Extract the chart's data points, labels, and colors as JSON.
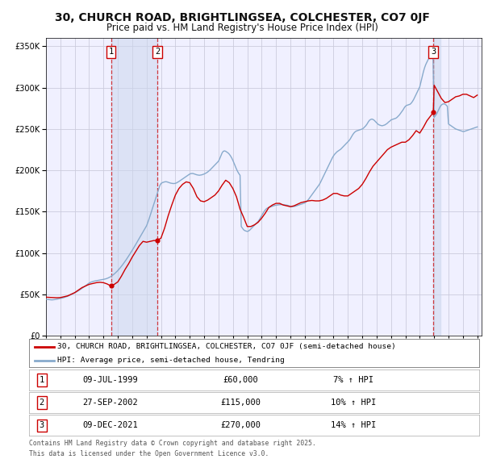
{
  "title": "30, CHURCH ROAD, BRIGHTLINGSEA, COLCHESTER, CO7 0JF",
  "subtitle": "Price paid vs. HM Land Registry's House Price Index (HPI)",
  "title_fontsize": 10,
  "subtitle_fontsize": 8.5,
  "line1_label": "30, CHURCH ROAD, BRIGHTLINGSEA, COLCHESTER, CO7 0JF (semi-detached house)",
  "line2_label": "HPI: Average price, semi-detached house, Tendring",
  "line1_color": "#cc0000",
  "line2_color": "#88aacc",
  "background_color": "#ffffff",
  "plot_bg_color": "#f0f0ff",
  "grid_color": "#ccccdd",
  "ylim": [
    0,
    360000
  ],
  "purchases": [
    {
      "label": "1",
      "date": "09-JUL-1999",
      "price": 60000,
      "pct": "7%",
      "year": 1999.52
    },
    {
      "label": "2",
      "date": "27-SEP-2002",
      "price": 115000,
      "pct": "10%",
      "year": 2002.74
    },
    {
      "label": "3",
      "date": "09-DEC-2021",
      "price": 270000,
      "pct": "14%",
      "year": 2021.94
    }
  ],
  "footnote1": "Contains HM Land Registry data © Crown copyright and database right 2025.",
  "footnote2": "This data is licensed under the Open Government Licence v3.0.",
  "hpi_years": [
    1995.0,
    1995.083,
    1995.167,
    1995.25,
    1995.333,
    1995.417,
    1995.5,
    1995.583,
    1995.667,
    1995.75,
    1995.833,
    1995.917,
    1996.0,
    1996.083,
    1996.167,
    1996.25,
    1996.333,
    1996.417,
    1996.5,
    1996.583,
    1996.667,
    1996.75,
    1996.833,
    1996.917,
    1997.0,
    1997.083,
    1997.167,
    1997.25,
    1997.333,
    1997.417,
    1997.5,
    1997.583,
    1997.667,
    1997.75,
    1997.833,
    1997.917,
    1998.0,
    1998.083,
    1998.167,
    1998.25,
    1998.333,
    1998.417,
    1998.5,
    1998.583,
    1998.667,
    1998.75,
    1998.833,
    1998.917,
    1999.0,
    1999.083,
    1999.167,
    1999.25,
    1999.333,
    1999.417,
    1999.5,
    1999.583,
    1999.667,
    1999.75,
    1999.833,
    1999.917,
    2000.0,
    2000.083,
    2000.167,
    2000.25,
    2000.333,
    2000.417,
    2000.5,
    2000.583,
    2000.667,
    2000.75,
    2000.833,
    2000.917,
    2001.0,
    2001.083,
    2001.167,
    2001.25,
    2001.333,
    2001.417,
    2001.5,
    2001.583,
    2001.667,
    2001.75,
    2001.833,
    2001.917,
    2002.0,
    2002.083,
    2002.167,
    2002.25,
    2002.333,
    2002.417,
    2002.5,
    2002.583,
    2002.667,
    2002.75,
    2002.833,
    2002.917,
    2003.0,
    2003.083,
    2003.167,
    2003.25,
    2003.333,
    2003.417,
    2003.5,
    2003.583,
    2003.667,
    2003.75,
    2003.833,
    2003.917,
    2004.0,
    2004.083,
    2004.167,
    2004.25,
    2004.333,
    2004.417,
    2004.5,
    2004.583,
    2004.667,
    2004.75,
    2004.833,
    2004.917,
    2005.0,
    2005.083,
    2005.167,
    2005.25,
    2005.333,
    2005.417,
    2005.5,
    2005.583,
    2005.667,
    2005.75,
    2005.833,
    2005.917,
    2006.0,
    2006.083,
    2006.167,
    2006.25,
    2006.333,
    2006.417,
    2006.5,
    2006.583,
    2006.667,
    2006.75,
    2006.833,
    2006.917,
    2007.0,
    2007.083,
    2007.167,
    2007.25,
    2007.333,
    2007.417,
    2007.5,
    2007.583,
    2007.667,
    2007.75,
    2007.833,
    2007.917,
    2008.0,
    2008.083,
    2008.167,
    2008.25,
    2008.333,
    2008.417,
    2008.5,
    2008.583,
    2008.667,
    2008.75,
    2008.833,
    2008.917,
    2009.0,
    2009.083,
    2009.167,
    2009.25,
    2009.333,
    2009.417,
    2009.5,
    2009.583,
    2009.667,
    2009.75,
    2009.833,
    2009.917,
    2010.0,
    2010.083,
    2010.167,
    2010.25,
    2010.333,
    2010.417,
    2010.5,
    2010.583,
    2010.667,
    2010.75,
    2010.833,
    2010.917,
    2011.0,
    2011.083,
    2011.167,
    2011.25,
    2011.333,
    2011.417,
    2011.5,
    2011.583,
    2011.667,
    2011.75,
    2011.833,
    2011.917,
    2012.0,
    2012.083,
    2012.167,
    2012.25,
    2012.333,
    2012.417,
    2012.5,
    2012.583,
    2012.667,
    2012.75,
    2012.833,
    2012.917,
    2013.0,
    2013.083,
    2013.167,
    2013.25,
    2013.333,
    2013.417,
    2013.5,
    2013.583,
    2013.667,
    2013.75,
    2013.833,
    2013.917,
    2014.0,
    2014.083,
    2014.167,
    2014.25,
    2014.333,
    2014.417,
    2014.5,
    2014.583,
    2014.667,
    2014.75,
    2014.833,
    2014.917,
    2015.0,
    2015.083,
    2015.167,
    2015.25,
    2015.333,
    2015.417,
    2015.5,
    2015.583,
    2015.667,
    2015.75,
    2015.833,
    2015.917,
    2016.0,
    2016.083,
    2016.167,
    2016.25,
    2016.333,
    2016.417,
    2016.5,
    2016.583,
    2016.667,
    2016.75,
    2016.833,
    2016.917,
    2017.0,
    2017.083,
    2017.167,
    2017.25,
    2017.333,
    2017.417,
    2017.5,
    2017.583,
    2017.667,
    2017.75,
    2017.833,
    2017.917,
    2018.0,
    2018.083,
    2018.167,
    2018.25,
    2018.333,
    2018.417,
    2018.5,
    2018.583,
    2018.667,
    2018.75,
    2018.833,
    2018.917,
    2019.0,
    2019.083,
    2019.167,
    2019.25,
    2019.333,
    2019.417,
    2019.5,
    2019.583,
    2019.667,
    2019.75,
    2019.833,
    2019.917,
    2020.0,
    2020.083,
    2020.167,
    2020.25,
    2020.333,
    2020.417,
    2020.5,
    2020.583,
    2020.667,
    2020.75,
    2020.833,
    2020.917,
    2021.0,
    2021.083,
    2021.167,
    2021.25,
    2021.333,
    2021.417,
    2021.5,
    2021.583,
    2021.667,
    2021.75,
    2021.833,
    2021.917,
    2022.0,
    2022.083,
    2022.167,
    2022.25,
    2022.333,
    2022.417,
    2022.5,
    2022.583,
    2022.667,
    2022.75,
    2022.833,
    2022.917,
    2023.0,
    2023.083,
    2023.167,
    2023.25,
    2023.333,
    2023.417,
    2023.5,
    2023.583,
    2023.667,
    2023.75,
    2023.833,
    2023.917,
    2024.0,
    2024.083,
    2024.167,
    2024.25,
    2024.333,
    2024.417,
    2024.5,
    2024.583,
    2024.667,
    2024.75,
    2024.833,
    2024.917,
    2025.0
  ],
  "hpi_values": [
    44000,
    43800,
    43600,
    43400,
    43300,
    43200,
    43300,
    43500,
    43700,
    44000,
    44300,
    44600,
    44900,
    45200,
    45600,
    46000,
    46500,
    47000,
    47600,
    48200,
    48900,
    49600,
    50300,
    51000,
    51700,
    52500,
    53300,
    54200,
    55100,
    56100,
    57100,
    58100,
    59200,
    60300,
    61400,
    62500,
    63600,
    64300,
    64900,
    65400,
    65800,
    66100,
    66400,
    66700,
    67000,
    67300,
    67500,
    67700,
    68000,
    68300,
    68700,
    69200,
    69800,
    70500,
    71300,
    72300,
    73400,
    74600,
    75900,
    77300,
    78800,
    80400,
    82100,
    83900,
    85800,
    87800,
    89800,
    91900,
    94100,
    96300,
    98600,
    100900,
    103200,
    105600,
    108000,
    110500,
    113000,
    115500,
    118000,
    120500,
    123000,
    125500,
    128000,
    130500,
    133000,
    137000,
    141000,
    145500,
    150000,
    154500,
    159000,
    163500,
    168000,
    172500,
    177000,
    181500,
    184000,
    185000,
    185500,
    186000,
    186200,
    186000,
    185500,
    185000,
    184500,
    184200,
    184000,
    184000,
    184200,
    184800,
    185600,
    186500,
    187500,
    188500,
    189500,
    190500,
    191500,
    192500,
    193500,
    194500,
    195500,
    196000,
    196200,
    196000,
    195500,
    195000,
    194500,
    194200,
    194000,
    194200,
    194500,
    195000,
    195500,
    196200,
    197000,
    198000,
    199200,
    200500,
    202000,
    203500,
    205000,
    206500,
    208000,
    209500,
    211000,
    214000,
    217500,
    221000,
    223000,
    223500,
    223000,
    222000,
    221000,
    219500,
    217500,
    215000,
    212000,
    208500,
    205000,
    201500,
    198500,
    196000,
    194000,
    132000,
    130000,
    128000,
    127000,
    126500,
    126000,
    126500,
    127500,
    129000,
    130500,
    132000,
    133500,
    135000,
    136500,
    138000,
    140000,
    142500,
    145000,
    147500,
    150000,
    152000,
    153500,
    154500,
    155000,
    155500,
    156000,
    156500,
    157000,
    157500,
    157800,
    158000,
    158200,
    158500,
    158500,
    158500,
    158500,
    158200,
    158000,
    157800,
    157500,
    157000,
    156500,
    156000,
    156000,
    156200,
    156500,
    157000,
    157500,
    158000,
    158500,
    159000,
    159500,
    160000,
    160500,
    161500,
    163000,
    164500,
    166500,
    168500,
    170500,
    172500,
    174500,
    176500,
    178500,
    180500,
    182500,
    185000,
    188000,
    191000,
    194000,
    197000,
    200000,
    203000,
    206000,
    209000,
    212000,
    215000,
    217500,
    219500,
    221000,
    222500,
    223500,
    224500,
    225500,
    227000,
    228500,
    230000,
    231500,
    233000,
    234500,
    236000,
    238000,
    240500,
    243000,
    245000,
    246500,
    247500,
    248000,
    248500,
    249000,
    249500,
    250000,
    251000,
    252500,
    254000,
    256000,
    258500,
    260500,
    261500,
    262000,
    261500,
    260500,
    259000,
    257500,
    256000,
    255000,
    254500,
    254000,
    254000,
    254500,
    255000,
    256000,
    257000,
    258500,
    259500,
    261000,
    261500,
    262000,
    262500,
    263000,
    264000,
    265500,
    267000,
    269000,
    271000,
    273000,
    275500,
    277500,
    278500,
    279000,
    279500,
    280000,
    281500,
    283500,
    286000,
    289000,
    292000,
    295000,
    298000,
    301000,
    307000,
    313000,
    319000,
    324000,
    328000,
    331000,
    334000,
    336000,
    337500,
    339000,
    341000,
    264000,
    266000,
    268000,
    271000,
    274000,
    277000,
    279000,
    280000,
    280500,
    280000,
    279000,
    277500,
    256000,
    255000,
    254000,
    253000,
    252000,
    251000,
    250000,
    249500,
    249000,
    248500,
    248000,
    247500,
    247000,
    247000,
    247500,
    248000,
    248500,
    249000,
    249500,
    250000,
    250500,
    251000,
    251500,
    252000,
    252500
  ],
  "price_years": [
    1995.0,
    1995.25,
    1995.5,
    1995.75,
    1996.0,
    1996.25,
    1996.5,
    1996.75,
    1997.0,
    1997.25,
    1997.5,
    1997.75,
    1998.0,
    1998.25,
    1998.5,
    1998.75,
    1999.0,
    1999.25,
    1999.52,
    1999.75,
    2000.0,
    2000.25,
    2000.5,
    2000.75,
    2001.0,
    2001.25,
    2001.5,
    2001.75,
    2002.0,
    2002.25,
    2002.5,
    2002.74,
    2003.0,
    2003.25,
    2003.5,
    2003.75,
    2004.0,
    2004.25,
    2004.5,
    2004.75,
    2005.0,
    2005.25,
    2005.5,
    2005.75,
    2006.0,
    2006.25,
    2006.5,
    2006.75,
    2007.0,
    2007.25,
    2007.5,
    2007.75,
    2008.0,
    2008.25,
    2008.5,
    2008.75,
    2009.0,
    2009.25,
    2009.5,
    2009.75,
    2010.0,
    2010.25,
    2010.5,
    2010.75,
    2011.0,
    2011.25,
    2011.5,
    2011.75,
    2012.0,
    2012.25,
    2012.5,
    2012.75,
    2013.0,
    2013.25,
    2013.5,
    2013.75,
    2014.0,
    2014.25,
    2014.5,
    2014.75,
    2015.0,
    2015.25,
    2015.5,
    2015.75,
    2016.0,
    2016.25,
    2016.5,
    2016.75,
    2017.0,
    2017.25,
    2017.5,
    2017.75,
    2018.0,
    2018.25,
    2018.5,
    2018.75,
    2019.0,
    2019.25,
    2019.5,
    2019.75,
    2020.0,
    2020.25,
    2020.5,
    2020.75,
    2021.0,
    2021.25,
    2021.5,
    2021.94,
    2022.0,
    2022.25,
    2022.5,
    2022.75,
    2023.0,
    2023.25,
    2023.5,
    2023.75,
    2024.0,
    2024.25,
    2024.5,
    2024.75,
    2025.0
  ],
  "price_values": [
    46500,
    46200,
    46000,
    45800,
    46000,
    47000,
    48000,
    50000,
    52000,
    55000,
    58000,
    60000,
    62000,
    63000,
    64000,
    64500,
    64000,
    62500,
    60000,
    62000,
    65000,
    72000,
    80000,
    87000,
    95000,
    102000,
    109000,
    114000,
    113000,
    114000,
    115000,
    115000,
    118000,
    130000,
    145000,
    158000,
    170000,
    178000,
    183000,
    186000,
    185000,
    178000,
    168000,
    163000,
    162000,
    164000,
    167000,
    170000,
    175000,
    182000,
    188000,
    185000,
    178000,
    168000,
    153000,
    143000,
    132000,
    132000,
    134000,
    137000,
    142000,
    148000,
    155000,
    158000,
    160000,
    160000,
    158000,
    157000,
    156000,
    157000,
    159000,
    161000,
    162000,
    163000,
    163500,
    163000,
    163000,
    164000,
    166000,
    169000,
    172000,
    172000,
    170000,
    169000,
    169000,
    172000,
    175000,
    178000,
    183000,
    190000,
    198000,
    205000,
    210000,
    215000,
    220000,
    225000,
    228000,
    230000,
    232000,
    234000,
    234000,
    237000,
    242000,
    248000,
    245000,
    252000,
    260000,
    270000,
    303000,
    295000,
    287000,
    282000,
    283000,
    286000,
    289000,
    290000,
    292000,
    292000,
    290000,
    288000,
    291000
  ]
}
